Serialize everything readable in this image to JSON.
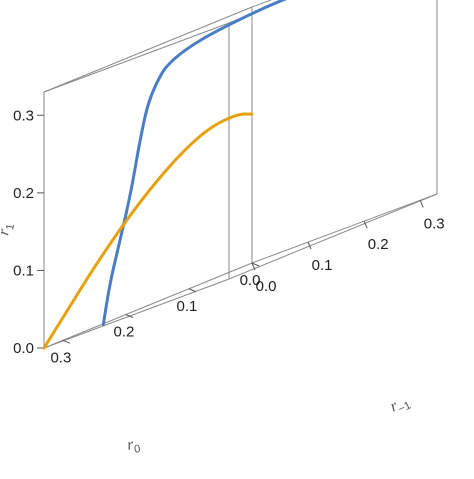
{
  "chart_data": {
    "type": "line3d",
    "title": "",
    "axes": {
      "x": {
        "name": "r",
        "subscript": "0",
        "ticks": [
          "0.0",
          "0.1",
          "0.2",
          "0.3"
        ],
        "range": [
          0,
          0.33
        ]
      },
      "y": {
        "name": "r",
        "subscript": "−1",
        "ticks": [
          "0.0",
          "0.1",
          "0.2",
          "0.3"
        ],
        "range": [
          0,
          0.33
        ]
      },
      "z": {
        "name": "r",
        "subscript": "1",
        "ticks": [
          "0.0",
          "0.1",
          "0.2",
          "0.3"
        ],
        "range": [
          0,
          0.33
        ]
      }
    },
    "box": true,
    "grid": false,
    "series": [
      {
        "color": "#4a7ec4",
        "points": [
          [
            0.093,
            0.329,
            0.31
          ],
          [
            0.112,
            0.29,
            0.327
          ],
          [
            0.153,
            0.204,
            0.33
          ],
          [
            0.21,
            0.096,
            0.314
          ],
          [
            0.23,
            0.077,
            0.274
          ],
          [
            0.24,
            0.07,
            0.22
          ],
          [
            0.248,
            0.064,
            0.16
          ],
          [
            0.26,
            0.058,
            0.103
          ],
          [
            0.27,
            0.05,
            0.05
          ],
          [
            0.275,
            0.044,
            0.0
          ]
        ]
      },
      {
        "color": "#e5a10e",
        "points": [
          [
            0.33,
            0.0,
            0.0
          ],
          [
            0.284,
            0.0,
            0.045
          ],
          [
            0.241,
            0.0,
            0.0862
          ],
          [
            0.197,
            0.0,
            0.1232
          ],
          [
            0.152,
            0.0,
            0.1555
          ],
          [
            0.108,
            0.0,
            0.1812
          ],
          [
            0.065,
            0.0,
            0.1975
          ],
          [
            0.022,
            0.0,
            0.1995
          ],
          [
            0.0,
            0.0,
            0.192
          ]
        ]
      }
    ]
  }
}
